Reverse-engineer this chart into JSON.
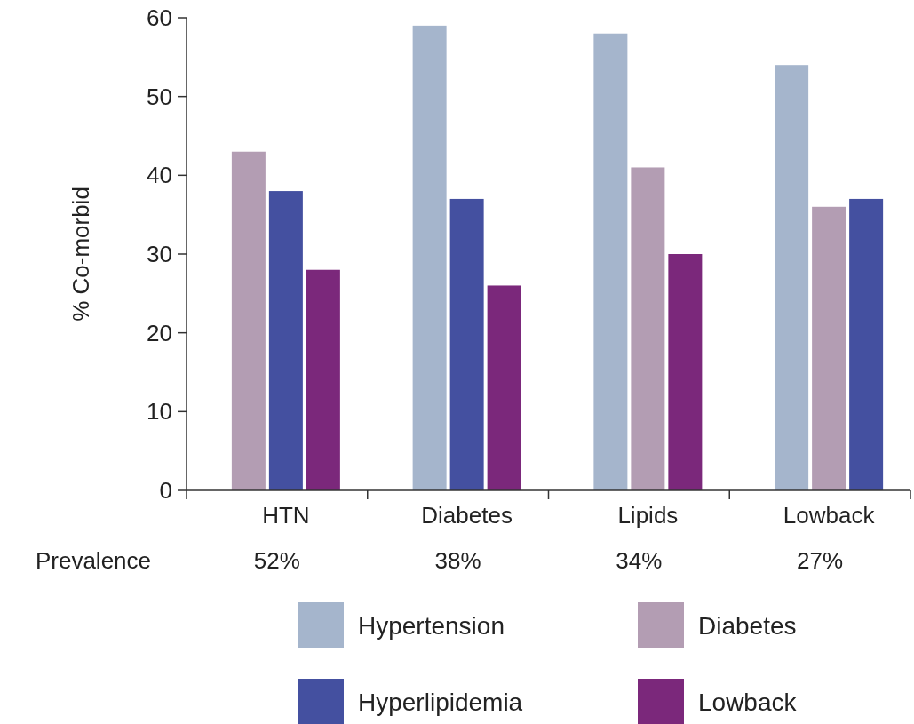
{
  "chart_data": {
    "type": "bar",
    "ylabel": "% Co-morbid",
    "categories": [
      "HTN",
      "Diabetes",
      "Lipids",
      "Lowback"
    ],
    "series": [
      {
        "name": "Hypertension",
        "color": "#a5b5cc",
        "values": [
          null,
          59,
          58,
          54
        ]
      },
      {
        "name": "Diabetes",
        "color": "#b39db3",
        "values": [
          43,
          null,
          41,
          36
        ]
      },
      {
        "name": "Hyperlipidemia",
        "color": "#4450a0",
        "values": [
          38,
          37,
          null,
          37
        ]
      },
      {
        "name": "Lowback",
        "color": "#7b287b",
        "values": [
          28,
          26,
          30,
          null
        ]
      }
    ],
    "ylim": [
      0,
      60
    ],
    "yticks": [
      0,
      10,
      20,
      30,
      40,
      50,
      60
    ],
    "legend": "bottom",
    "grid": false,
    "annotations": [
      "Prevalence",
      "52%",
      "38%",
      "34%",
      "27%"
    ]
  }
}
